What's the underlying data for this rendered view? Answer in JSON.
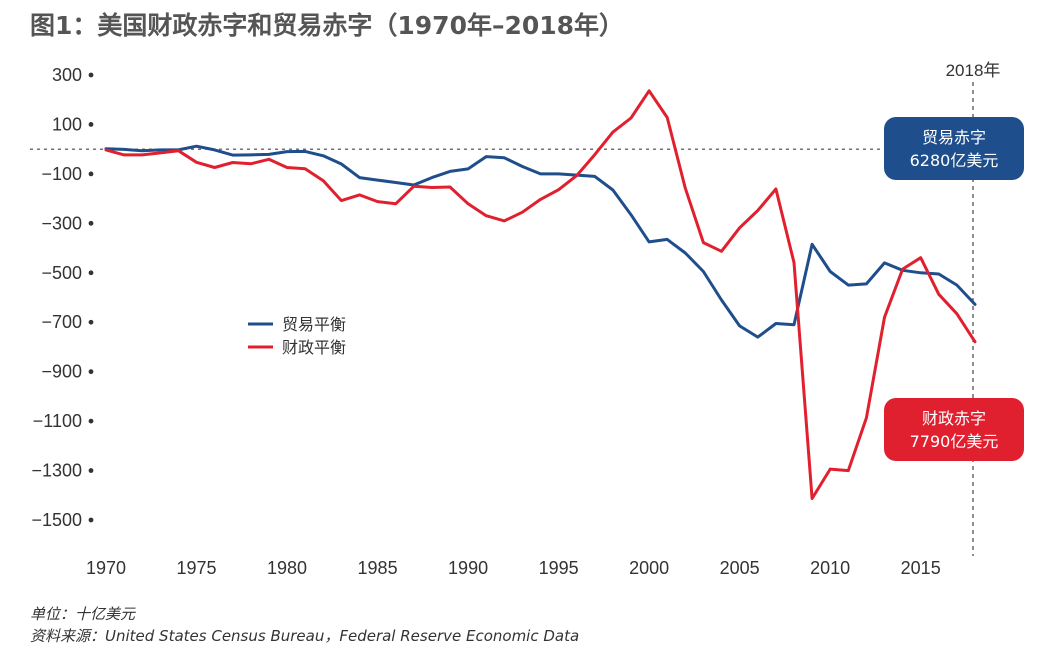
{
  "title": "图1：美国财政赤字和贸易赤字（1970年–2018年）",
  "unit_label": "单位：十亿美元",
  "source_label": "资料来源：United States Census Bureau，Federal Reserve Economic Data",
  "chart_data": {
    "type": "line",
    "title": "美国财政赤字和贸易赤字（1970年–2018年）",
    "xlabel": "",
    "ylabel": "十亿美元",
    "xlim": [
      1970,
      2018
    ],
    "ylim": [
      -1500,
      300
    ],
    "x_ticks": [
      1970,
      1975,
      1980,
      1985,
      1990,
      1995,
      2000,
      2005,
      2010,
      2015
    ],
    "y_ticks": [
      300,
      100,
      -100,
      -300,
      -500,
      -700,
      -900,
      -1100,
      -1300,
      -1500
    ],
    "y_tick_labels": [
      "300",
      "100",
      "−100",
      "−300",
      "−500",
      "−700",
      "−900",
      "−1100",
      "−1300",
      "−1500"
    ],
    "reference_line_y": 0,
    "marker_line_x": 2018,
    "marker_label": "2018年",
    "legend": [
      "贸易平衡",
      "财政平衡"
    ],
    "series": [
      {
        "name": "贸易平衡",
        "color": "#1f4e8c",
        "x": [
          1970,
          1971,
          1972,
          1973,
          1974,
          1975,
          1976,
          1977,
          1978,
          1979,
          1980,
          1981,
          1982,
          1983,
          1984,
          1985,
          1986,
          1987,
          1988,
          1989,
          1990,
          1991,
          1992,
          1993,
          1994,
          1995,
          1996,
          1997,
          1998,
          1999,
          2000,
          2001,
          2002,
          2003,
          2004,
          2005,
          2006,
          2007,
          2008,
          2009,
          2010,
          2011,
          2012,
          2013,
          2014,
          2015,
          2016,
          2017,
          2018
        ],
        "values": [
          2,
          -1,
          -6,
          -3,
          -3,
          12,
          -3,
          -24,
          -23,
          -21,
          -10,
          -9,
          -27,
          -60,
          -115,
          -125,
          -135,
          -145,
          -115,
          -90,
          -80,
          -30,
          -35,
          -70,
          -100,
          -100,
          -105,
          -110,
          -165,
          -265,
          -375,
          -365,
          -420,
          -495,
          -610,
          -715,
          -760,
          -705,
          -710,
          -385,
          -495,
          -550,
          -545,
          -460,
          -490,
          -500,
          -505,
          -550,
          -628
        ]
      },
      {
        "name": "财政平衡",
        "color": "#e1202f",
        "x": [
          1970,
          1971,
          1972,
          1973,
          1974,
          1975,
          1976,
          1977,
          1978,
          1979,
          1980,
          1981,
          1982,
          1983,
          1984,
          1985,
          1986,
          1987,
          1988,
          1989,
          1990,
          1991,
          1992,
          1993,
          1994,
          1995,
          1996,
          1997,
          1998,
          1999,
          2000,
          2001,
          2002,
          2003,
          2004,
          2005,
          2006,
          2007,
          2008,
          2009,
          2010,
          2011,
          2012,
          2013,
          2014,
          2015,
          2016,
          2017,
          2018
        ],
        "values": [
          -3,
          -23,
          -23,
          -15,
          -6,
          -53,
          -74,
          -54,
          -59,
          -41,
          -74,
          -79,
          -128,
          -208,
          -185,
          -212,
          -221,
          -150,
          -155,
          -153,
          -221,
          -269,
          -290,
          -255,
          -203,
          -164,
          -107,
          -22,
          69,
          126,
          236,
          128,
          -158,
          -378,
          -413,
          -318,
          -248,
          -161,
          -459,
          -1413,
          -1294,
          -1300,
          -1087,
          -680,
          -485,
          -439,
          -587,
          -666,
          -779
        ]
      }
    ],
    "annotations": [
      {
        "text_line1": "贸易赤字",
        "text_line2": "6280亿美元",
        "color": "#1f4e8c",
        "series": "贸易平衡"
      },
      {
        "text_line1": "财政赤字",
        "text_line2": "7790亿美元",
        "color": "#e1202f",
        "series": "财政平衡"
      }
    ]
  }
}
